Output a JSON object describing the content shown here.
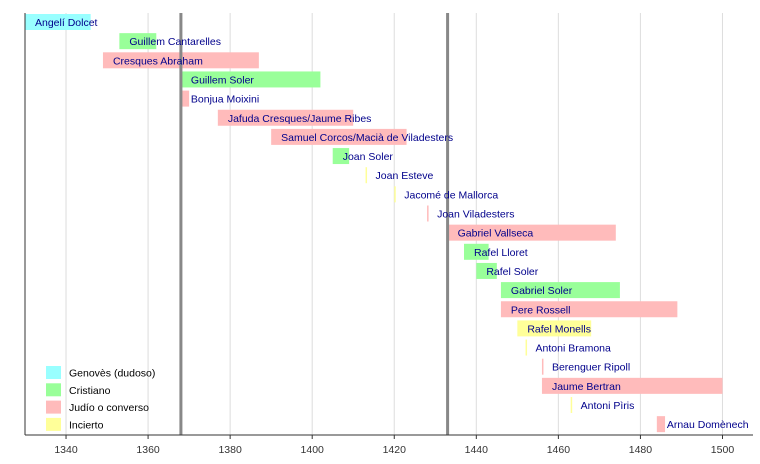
{
  "chart_data": {
    "type": "bar",
    "orientation": "horizontal-timeline",
    "title": "",
    "xlabel": "",
    "ylabel": "",
    "xlim": [
      1330,
      1505
    ],
    "x_ticks": [
      1340,
      1360,
      1380,
      1400,
      1420,
      1440,
      1460,
      1480,
      1500
    ],
    "grid": true,
    "legend_position": "bottom-left",
    "categories": [
      {
        "key": "genoves",
        "label": "Genovès (dudoso)",
        "color": "#99ffff"
      },
      {
        "key": "cristiano",
        "label": "Cristiano",
        "color": "#99ff99"
      },
      {
        "key": "judio",
        "label": "Judío o converso",
        "color": "#ffbbbb"
      },
      {
        "key": "incierto",
        "label": "Incierto",
        "color": "#ffff99"
      }
    ],
    "bars": [
      {
        "name": "Angelí Dolcet",
        "start": 1330,
        "end": 1346,
        "category": "genoves"
      },
      {
        "name": "Guillem Cantarelles",
        "start": 1353,
        "end": 1362,
        "category": "cristiano"
      },
      {
        "name": "Cresques Abraham",
        "start": 1349,
        "end": 1387,
        "category": "judio"
      },
      {
        "name": "Guillem Soler",
        "start": 1368,
        "end": 1402,
        "category": "cristiano"
      },
      {
        "name": "Bonjua Moixini",
        "start": 1368,
        "end": 1370,
        "category": "judio"
      },
      {
        "name": "Jafuda Cresques/Jaume Ribes",
        "start": 1377,
        "end": 1410,
        "category": "judio"
      },
      {
        "name": "Samuel Corcos/Macià de Viladesters",
        "start": 1390,
        "end": 1423,
        "category": "judio"
      },
      {
        "name": "Joan Soler",
        "start": 1405,
        "end": 1409,
        "category": "cristiano"
      },
      {
        "name": "Joan Esteve",
        "start": 1413,
        "end": 1413,
        "category": "incierto"
      },
      {
        "name": "Jacomé de Mallorca",
        "start": 1420,
        "end": 1420,
        "category": "incierto"
      },
      {
        "name": "Joan Viladesters",
        "start": 1428,
        "end": 1428,
        "category": "judio"
      },
      {
        "name": "Gabriel Vallseca",
        "start": 1433,
        "end": 1474,
        "category": "judio"
      },
      {
        "name": "Rafel Lloret",
        "start": 1437,
        "end": 1443,
        "category": "cristiano"
      },
      {
        "name": "Rafel Soler",
        "start": 1440,
        "end": 1445,
        "category": "cristiano"
      },
      {
        "name": "Gabriel Soler",
        "start": 1446,
        "end": 1475,
        "category": "cristiano"
      },
      {
        "name": "Pere Rossell",
        "start": 1446,
        "end": 1489,
        "category": "judio"
      },
      {
        "name": "Rafel Monells",
        "start": 1450,
        "end": 1468,
        "category": "incierto"
      },
      {
        "name": "Antoni  Bramona",
        "start": 1452,
        "end": 1452,
        "category": "incierto"
      },
      {
        "name": "Berenguer Ripoll",
        "start": 1456,
        "end": 1456,
        "category": "judio"
      },
      {
        "name": "Jaume Bertran",
        "start": 1456,
        "end": 1500,
        "category": "judio"
      },
      {
        "name": "Antoni Pìris",
        "start": 1463,
        "end": 1463,
        "category": "incierto"
      },
      {
        "name": "Arnau Domènech",
        "start": 1484,
        "end": 1486,
        "category": "judio"
      }
    ],
    "markers": [
      1368,
      1433
    ]
  }
}
